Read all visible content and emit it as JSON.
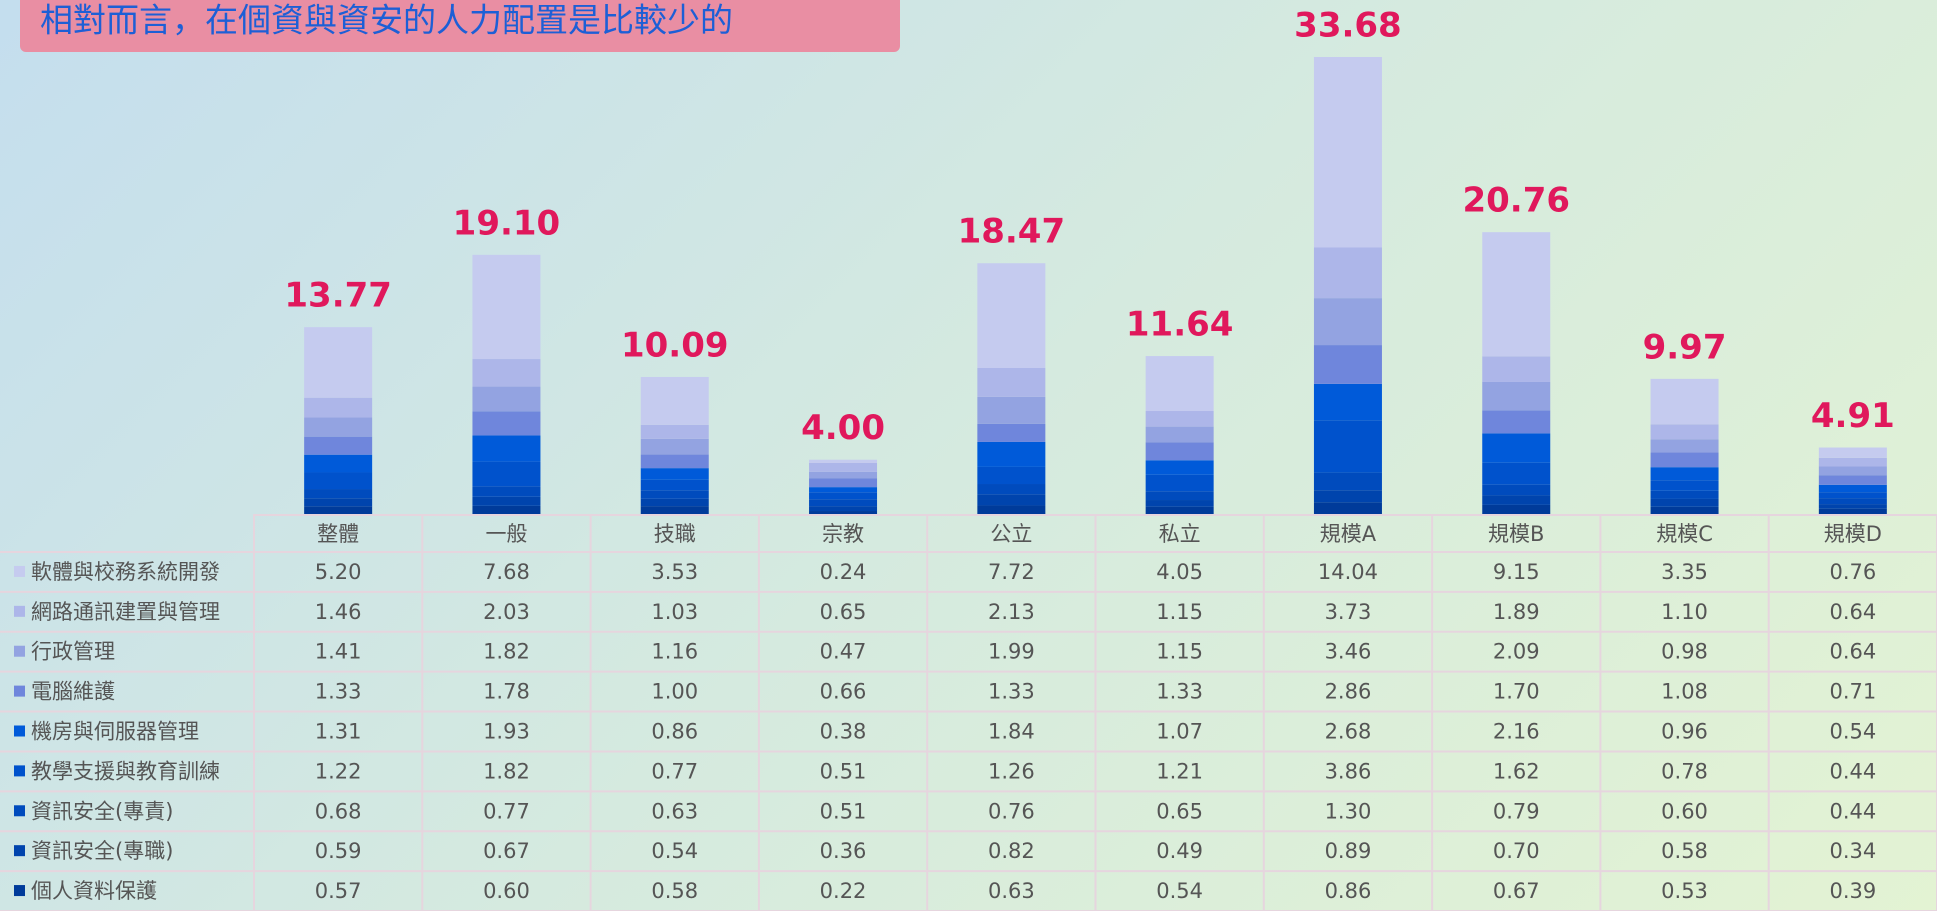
{
  "chart_data": {
    "type": "stacked_bar",
    "title": "相對而言，在個資與資安的人力配置是比較少的",
    "categories": [
      "整體",
      "一般",
      "技職",
      "宗教",
      "公立",
      "私立",
      "規模A",
      "規模B",
      "規模C",
      "規模D"
    ],
    "totals": [
      13.77,
      19.1,
      10.09,
      4,
      18.47,
      11.64,
      33.68,
      20.76,
      9.97,
      4.91
    ],
    "total_labels": [
      "13.77",
      "19.10",
      "10.09",
      "4.00",
      "18.47",
      "11.64",
      "33.68",
      "20.76",
      "9.97",
      "4.91"
    ],
    "series": [
      {
        "name": "軟體與校務系統開發",
        "color": "#c5cbef",
        "values": [
          5.2,
          7.68,
          3.53,
          0.24,
          7.72,
          4.05,
          14.04,
          9.15,
          3.35,
          0.76
        ],
        "value_labels": [
          "5.20",
          "7.68",
          "3.53",
          "0.24",
          "7.72",
          "4.05",
          "14.04",
          "9.15",
          "3.35",
          "0.76"
        ]
      },
      {
        "name": "網路通訊建置與管理",
        "color": "#adb6e9",
        "values": [
          1.46,
          2.03,
          1.03,
          0.65,
          2.13,
          1.15,
          3.73,
          1.89,
          1.1,
          0.64
        ],
        "value_labels": [
          "1.46",
          "2.03",
          "1.03",
          "0.65",
          "2.13",
          "1.15",
          "3.73",
          "1.89",
          "1.10",
          "0.64"
        ]
      },
      {
        "name": "行政管理",
        "color": "#93a3e1",
        "values": [
          1.41,
          1.82,
          1.16,
          0.47,
          1.99,
          1.15,
          3.46,
          2.09,
          0.98,
          0.64
        ],
        "value_labels": [
          "1.41",
          "1.82",
          "1.16",
          "0.47",
          "1.99",
          "1.15",
          "3.46",
          "2.09",
          "0.98",
          "0.64"
        ]
      },
      {
        "name": "電腦維護",
        "color": "#6f86dc",
        "values": [
          1.33,
          1.78,
          1,
          0.66,
          1.33,
          1.33,
          2.86,
          1.7,
          1.08,
          0.71
        ],
        "value_labels": [
          "1.33",
          "1.78",
          "1.00",
          "0.66",
          "1.33",
          "1.33",
          "2.86",
          "1.70",
          "1.08",
          "0.71"
        ]
      },
      {
        "name": "機房與伺服器管理",
        "color": "#005ad9",
        "values": [
          1.31,
          1.93,
          0.86,
          0.38,
          1.84,
          1.07,
          2.68,
          2.16,
          0.96,
          0.54
        ],
        "value_labels": [
          "1.31",
          "1.93",
          "0.86",
          "0.38",
          "1.84",
          "1.07",
          "2.68",
          "2.16",
          "0.96",
          "0.54"
        ]
      },
      {
        "name": "教學支援與教育訓練",
        "color": "#0052cc",
        "values": [
          1.22,
          1.82,
          0.77,
          0.51,
          1.26,
          1.21,
          3.86,
          1.62,
          0.78,
          0.44
        ],
        "value_labels": [
          "1.22",
          "1.82",
          "0.77",
          "0.51",
          "1.26",
          "1.21",
          "3.86",
          "1.62",
          "0.78",
          "0.44"
        ]
      },
      {
        "name": "資訊安全(專責)",
        "color": "#004bbd",
        "values": [
          0.68,
          0.77,
          0.63,
          0.51,
          0.76,
          0.65,
          1.3,
          0.79,
          0.6,
          0.44
        ],
        "value_labels": [
          "0.68",
          "0.77",
          "0.63",
          "0.51",
          "0.76",
          "0.65",
          "1.30",
          "0.79",
          "0.60",
          "0.44"
        ]
      },
      {
        "name": "資訊安全(專職)",
        "color": "#0044ad",
        "values": [
          0.59,
          0.67,
          0.54,
          0.36,
          0.82,
          0.49,
          0.89,
          0.7,
          0.58,
          0.34
        ],
        "value_labels": [
          "0.59",
          "0.67",
          "0.54",
          "0.36",
          "0.82",
          "0.49",
          "0.89",
          "0.70",
          "0.58",
          "0.34"
        ]
      },
      {
        "name": "個人資料保護",
        "color": "#003b9a",
        "values": [
          0.57,
          0.6,
          0.58,
          0.22,
          0.63,
          0.54,
          0.86,
          0.67,
          0.53,
          0.39
        ],
        "value_labels": [
          "0.57",
          "0.60",
          "0.58",
          "0.22",
          "0.63",
          "0.54",
          "0.86",
          "0.67",
          "0.53",
          "0.39"
        ]
      }
    ]
  }
}
